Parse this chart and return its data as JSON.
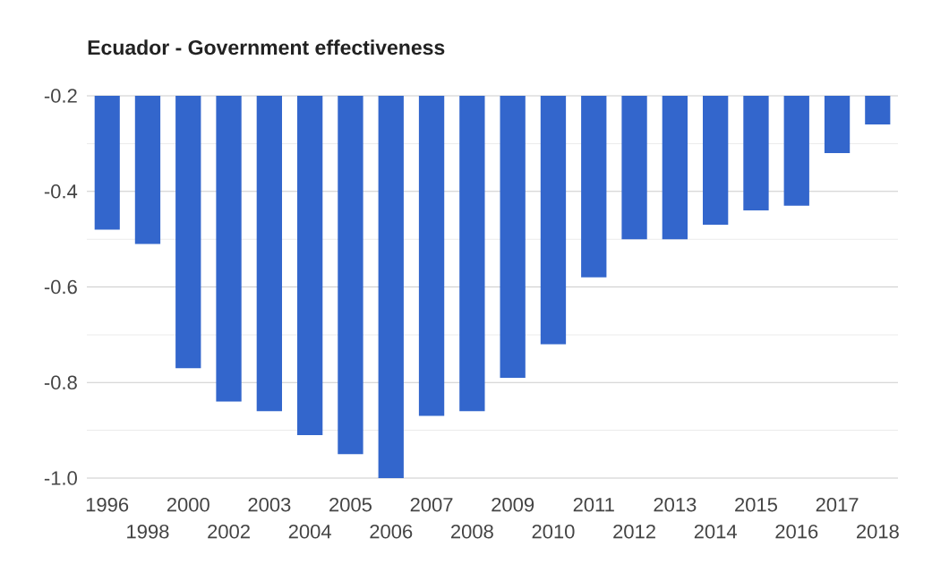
{
  "chart_data": {
    "type": "bar",
    "title": "Ecuador - Government effectiveness",
    "categories": [
      "1996",
      "1998",
      "2000",
      "2002",
      "2003",
      "2004",
      "2005",
      "2006",
      "2007",
      "2008",
      "2009",
      "2010",
      "2011",
      "2012",
      "2013",
      "2014",
      "2015",
      "2016",
      "2017",
      "2018"
    ],
    "values": [
      -0.48,
      -0.51,
      -0.77,
      -0.84,
      -0.86,
      -0.91,
      -0.95,
      -1.0,
      -0.87,
      -0.86,
      -0.79,
      -0.72,
      -0.58,
      -0.5,
      -0.5,
      -0.47,
      -0.44,
      -0.43,
      -0.32,
      -0.26
    ],
    "color": "#3366cc",
    "ylim": [
      -1.0,
      -0.2
    ],
    "yticks": [
      {
        "value": -1.0,
        "label": "-1.0"
      },
      -0.8,
      -0.6,
      -0.4,
      -0.2
    ],
    "grid": "y"
  }
}
